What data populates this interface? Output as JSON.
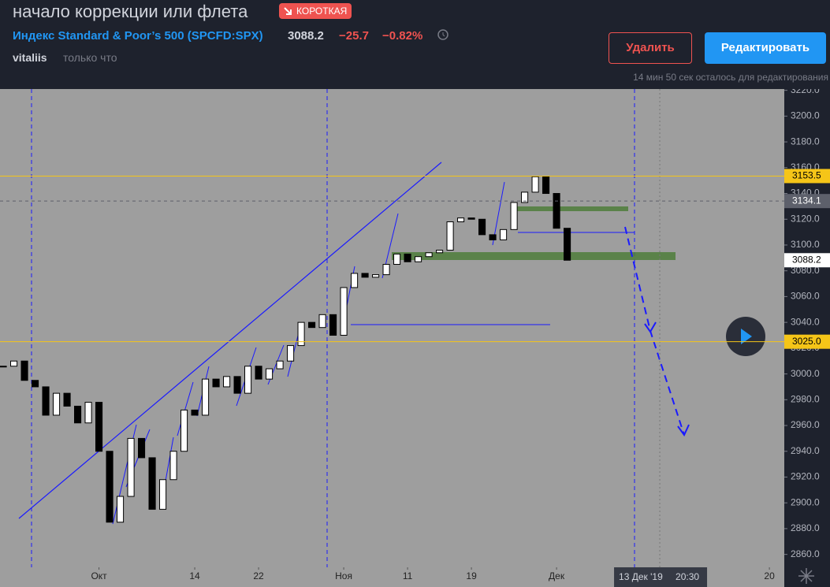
{
  "header": {
    "title": "начало коррекции или флета",
    "badge": "КОРОТКАЯ",
    "symbol": "Индекс Standard & Poor’s 500 (SPCFD:SPX)",
    "price": "3088.2",
    "change": "−25.7",
    "change_pct": "−0.82%",
    "author": "vitaliis",
    "time": "только что",
    "delete_button": "Удалить",
    "edit_button": "Редактировать",
    "edit_note": "14 мин 50 сек осталось для редактирования"
  },
  "chart_data": {
    "type": "candlestick",
    "values": [
      3006,
      3010,
      2995,
      2990,
      2968,
      2985,
      2975,
      2962,
      2978,
      2940,
      2885,
      2905,
      2950,
      2935,
      2895,
      2918,
      2940,
      2972,
      2968,
      2996,
      2990,
      2998,
      2985,
      3006,
      2996,
      3004,
      3010,
      3022,
      3040,
      3036,
      3046,
      3030,
      3067,
      3078,
      3075,
      3077,
      3085,
      3093,
      3087,
      3091,
      3094,
      3096,
      3118,
      3121,
      3120,
      3108,
      3104,
      3112,
      3133,
      3141,
      3153,
      3140,
      3113,
      3088.2
    ],
    "xlim": [
      -0.3,
      73.4
    ],
    "xticks": [
      {
        "value": 9,
        "label": "Окт"
      },
      {
        "value": 18,
        "label": "14"
      },
      {
        "value": 24,
        "label": "22"
      },
      {
        "value": 32,
        "label": "Ноя"
      },
      {
        "value": 38,
        "label": "11"
      },
      {
        "value": 44,
        "label": "19"
      },
      {
        "value": 52,
        "label": "Дек"
      },
      {
        "value": 72,
        "label": "20"
      }
    ],
    "crosshair": {
      "value": 61.7,
      "date": "13 Дек '19",
      "time": "20:30"
    },
    "ylim": [
      2850,
      3221
    ],
    "yticks": [
      {
        "value": 2860,
        "label": "2860.0"
      },
      {
        "value": 2880,
        "label": "2880.0"
      },
      {
        "value": 2900,
        "label": "2900.0"
      },
      {
        "value": 2920,
        "label": "2920.0"
      },
      {
        "value": 2940,
        "label": "2940.0"
      },
      {
        "value": 2960,
        "label": "2960.0"
      },
      {
        "value": 2980,
        "label": "2980.0"
      },
      {
        "value": 3000,
        "label": "3000.0"
      },
      {
        "value": 3020,
        "label": "3020.0"
      },
      {
        "value": 3040,
        "label": "3040.0"
      },
      {
        "value": 3060,
        "label": "3060.0"
      },
      {
        "value": 3080,
        "label": "3080.0"
      },
      {
        "value": 3100,
        "label": "3100.0"
      },
      {
        "value": 3120,
        "label": "3120.0"
      },
      {
        "value": 3140,
        "label": "3140.0"
      },
      {
        "value": 3160,
        "label": "3160.0"
      },
      {
        "value": 3180,
        "label": "3180.0"
      },
      {
        "value": 3200,
        "label": "3200.0"
      },
      {
        "value": 3220,
        "label": "3220.0"
      }
    ],
    "levels": [
      {
        "value": 3153.5,
        "label": "3153.5",
        "color": "#f5c518"
      },
      {
        "value": 3134.1,
        "label": "3134.1",
        "color": "#5d606b"
      },
      {
        "value": 3088.2,
        "label": "3088.2",
        "color": "#ffffff"
      },
      {
        "value": 3025,
        "label": "3025.0",
        "color": "#f5c518"
      }
    ]
  }
}
